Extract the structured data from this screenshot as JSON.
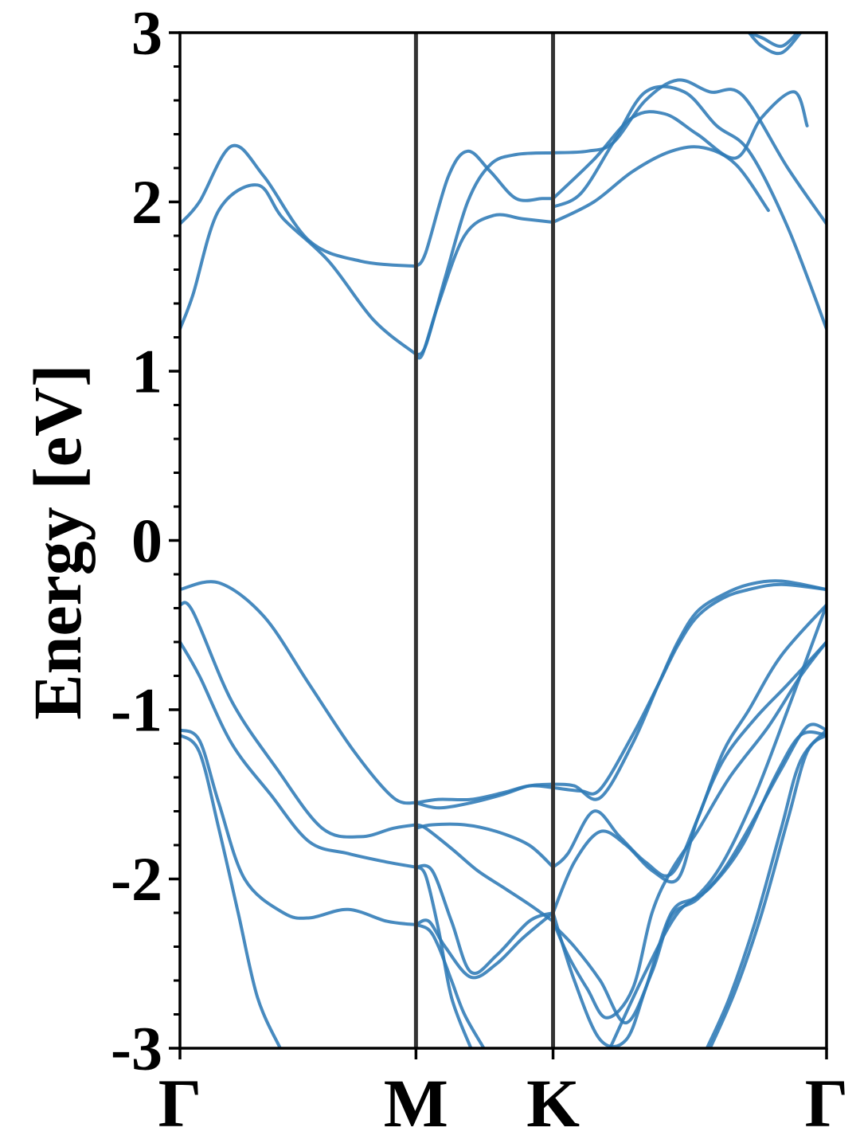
{
  "chart_data": {
    "type": "line",
    "title": "",
    "xlabel": "",
    "ylabel": "Energy [eV]",
    "ylim": [
      -3,
      3
    ],
    "xlim": [
      0,
      1
    ],
    "grid": false,
    "legend": "none",
    "yticks": [
      3,
      2,
      1,
      0,
      -1,
      -2,
      -3
    ],
    "ytick_labels": [
      "3",
      "2",
      "1",
      "0",
      "-1",
      "-2",
      "-3"
    ],
    "xticks": [
      0,
      0.365,
      0.577,
      1
    ],
    "xtick_labels": [
      "Γ",
      "M",
      "K",
      "Γ"
    ],
    "high_symmetry_lines": [
      0.365,
      0.577
    ],
    "series_color": "#2E7AB6",
    "vline_color": "#333333",
    "series": [
      {
        "x": [
          0,
          0.03,
          0.08,
          0.13,
          0.2,
          0.28,
          0.365
        ],
        "values": [
          1.87,
          2.0,
          2.33,
          2.15,
          1.77,
          1.65,
          1.62
        ]
      },
      {
        "x": [
          0,
          0.02,
          0.06,
          0.12,
          0.16,
          0.23,
          0.3,
          0.365
        ],
        "values": [
          1.25,
          1.45,
          1.95,
          2.1,
          1.9,
          1.65,
          1.3,
          1.1
        ]
      },
      {
        "x": [
          0.365,
          0.38,
          0.415,
          0.445,
          0.48,
          0.52,
          0.56,
          0.577
        ],
        "values": [
          1.62,
          1.7,
          2.15,
          2.3,
          2.18,
          2.02,
          2.02,
          2.02
        ]
      },
      {
        "x": [
          0.365,
          0.38,
          0.41,
          0.445,
          0.48,
          0.52,
          0.577
        ],
        "values": [
          1.1,
          1.15,
          1.55,
          2.0,
          2.22,
          2.28,
          2.29
        ]
      },
      {
        "x": [
          0.365,
          0.375,
          0.4,
          0.44,
          0.485,
          0.53,
          0.577
        ],
        "values": [
          1.1,
          1.1,
          1.4,
          1.8,
          1.92,
          1.9,
          1.88
        ]
      },
      {
        "x": [
          0.577,
          0.63,
          0.67,
          0.72,
          0.77,
          0.82,
          0.87,
          0.94,
          1.0
        ],
        "values": [
          2.29,
          2.3,
          2.35,
          2.6,
          2.72,
          2.65,
          2.63,
          2.2,
          1.87
        ]
      },
      {
        "x": [
          0.577,
          0.62,
          0.67,
          0.72,
          0.78,
          0.83,
          0.88,
          0.94,
          1.0
        ],
        "values": [
          1.97,
          2.05,
          2.35,
          2.65,
          2.65,
          2.45,
          2.3,
          1.85,
          1.25
        ]
      },
      {
        "x": [
          0.577,
          0.64,
          0.7,
          0.75,
          0.8,
          0.86,
          0.9,
          0.95,
          0.97
        ],
        "values": [
          2.02,
          2.25,
          2.5,
          2.52,
          2.4,
          2.26,
          2.5,
          2.65,
          2.45
        ]
      },
      {
        "x": [
          0.577,
          0.64,
          0.7,
          0.76,
          0.81,
          0.86,
          0.91
        ],
        "values": [
          1.88,
          2.0,
          2.18,
          2.3,
          2.32,
          2.22,
          1.95
        ]
      },
      {
        "x": [
          0.88,
          0.9,
          0.93,
          0.96
        ],
        "values": [
          3.0,
          2.92,
          2.88,
          3.0
        ]
      },
      {
        "x": [
          0.88,
          0.9,
          0.93,
          0.955
        ],
        "values": [
          3.0,
          2.97,
          2.92,
          3.0
        ]
      },
      {
        "x": [
          0,
          0.06,
          0.13,
          0.2,
          0.27,
          0.33,
          0.365
        ],
        "values": [
          -0.29,
          -0.25,
          -0.45,
          -0.85,
          -1.25,
          -1.52,
          -1.55
        ]
      },
      {
        "x": [
          0,
          0.02,
          0.08,
          0.15,
          0.22,
          0.28,
          0.33,
          0.365
        ],
        "values": [
          -0.38,
          -0.42,
          -0.95,
          -1.35,
          -1.7,
          -1.75,
          -1.7,
          -1.68
        ]
      },
      {
        "x": [
          0,
          0.03,
          0.08,
          0.14,
          0.2,
          0.26,
          0.32,
          0.365
        ],
        "values": [
          -0.6,
          -0.8,
          -1.2,
          -1.5,
          -1.78,
          -1.85,
          -1.9,
          -1.93
        ]
      },
      {
        "x": [
          0,
          0.03,
          0.06,
          0.1,
          0.16,
          0.2,
          0.26,
          0.32,
          0.365
        ],
        "values": [
          -1.12,
          -1.18,
          -1.55,
          -2.0,
          -2.2,
          -2.23,
          -2.18,
          -2.25,
          -2.27
        ]
      },
      {
        "x": [
          0,
          0.03,
          0.06,
          0.09,
          0.12,
          0.155
        ],
        "values": [
          -1.15,
          -1.25,
          -1.7,
          -2.2,
          -2.7,
          -3.0
        ]
      },
      {
        "x": [
          0.365,
          0.4,
          0.45,
          0.5,
          0.54,
          0.577
        ],
        "values": [
          -1.55,
          -1.58,
          -1.55,
          -1.5,
          -1.45,
          -1.44
        ]
      },
      {
        "x": [
          0.365,
          0.4,
          0.45,
          0.5,
          0.54,
          0.577
        ],
        "values": [
          -1.55,
          -1.53,
          -1.53,
          -1.49,
          -1.45,
          -1.46
        ]
      },
      {
        "x": [
          0.365,
          0.39,
          0.44,
          0.49,
          0.54,
          0.577
        ],
        "values": [
          -1.7,
          -1.68,
          -1.68,
          -1.72,
          -1.8,
          -1.93
        ]
      },
      {
        "x": [
          0.365,
          0.38,
          0.42,
          0.46,
          0.5,
          0.54,
          0.577
        ],
        "values": [
          -1.68,
          -1.7,
          -1.82,
          -1.95,
          -2.05,
          -2.15,
          -2.25
        ]
      },
      {
        "x": [
          0.365,
          0.39,
          0.42,
          0.45,
          0.49,
          0.54,
          0.577
        ],
        "values": [
          -1.93,
          -1.95,
          -2.25,
          -2.55,
          -2.45,
          -2.25,
          -2.2
        ]
      },
      {
        "x": [
          0.365,
          0.385,
          0.41,
          0.45,
          0.49,
          0.53,
          0.577
        ],
        "values": [
          -2.27,
          -2.25,
          -2.4,
          -2.58,
          -2.5,
          -2.35,
          -2.2
        ]
      },
      {
        "x": [
          0.365,
          0.385,
          0.4,
          0.42,
          0.44,
          0.47
        ],
        "values": [
          -2.27,
          -2.3,
          -2.4,
          -2.6,
          -2.8,
          -3.0
        ]
      },
      {
        "x": [
          0.365,
          0.38,
          0.4,
          0.42,
          0.45
        ],
        "values": [
          -1.93,
          -1.98,
          -2.3,
          -2.7,
          -3.0
        ]
      },
      {
        "x": [
          0.577,
          0.61,
          0.65,
          0.7,
          0.74,
          0.77,
          0.8,
          0.84,
          0.88,
          0.93,
          1.0
        ],
        "values": [
          -1.44,
          -1.45,
          -1.52,
          -1.2,
          -0.85,
          -0.6,
          -0.42,
          -0.32,
          -0.26,
          -0.24,
          -0.29
        ]
      },
      {
        "x": [
          0.577,
          0.62,
          0.65,
          0.7,
          0.74,
          0.77,
          0.8,
          0.84,
          0.88,
          0.93,
          1.0
        ],
        "values": [
          -1.46,
          -1.48,
          -1.47,
          -1.15,
          -0.85,
          -0.62,
          -0.45,
          -0.34,
          -0.29,
          -0.26,
          -0.29
        ]
      },
      {
        "x": [
          0.577,
          0.6,
          0.64,
          0.68,
          0.72,
          0.76,
          0.8,
          0.84,
          0.88,
          0.93,
          1.0
        ],
        "values": [
          -1.93,
          -1.85,
          -1.6,
          -1.75,
          -1.9,
          -1.97,
          -1.65,
          -1.25,
          -1.0,
          -0.68,
          -0.38
        ]
      },
      {
        "x": [
          0.577,
          0.61,
          0.65,
          0.69,
          0.73,
          0.77,
          0.8,
          0.84,
          0.89,
          0.94,
          1.0
        ],
        "values": [
          -2.2,
          -1.9,
          -1.72,
          -1.8,
          -1.95,
          -2.0,
          -1.65,
          -1.3,
          -1.05,
          -0.85,
          -0.6
        ]
      },
      {
        "x": [
          0.577,
          0.6,
          0.63,
          0.66,
          0.7,
          0.73,
          0.76,
          0.8,
          0.85,
          0.91,
          0.96,
          1.0
        ],
        "values": [
          -2.25,
          -2.45,
          -2.65,
          -2.82,
          -2.65,
          -2.2,
          -1.95,
          -1.72,
          -1.4,
          -1.1,
          -0.8,
          -0.6
        ]
      },
      {
        "x": [
          0.577,
          0.61,
          0.65,
          0.69,
          0.72,
          0.76,
          0.8,
          0.84,
          0.89,
          0.94,
          1.0
        ],
        "values": [
          -2.2,
          -2.6,
          -2.95,
          -2.95,
          -2.65,
          -2.2,
          -2.1,
          -1.9,
          -1.5,
          -1.0,
          -0.38
        ]
      },
      {
        "x": [
          0.577,
          0.61,
          0.65,
          0.69,
          0.73,
          0.76,
          0.8,
          0.84,
          0.88,
          0.93,
          0.97,
          1.0
        ],
        "values": [
          -2.27,
          -2.4,
          -2.6,
          -2.85,
          -2.55,
          -2.22,
          -2.12,
          -1.95,
          -1.7,
          -1.35,
          -1.1,
          -1.12
        ]
      },
      {
        "x": [
          0.665,
          0.72,
          0.77,
          0.82,
          0.87,
          0.92,
          0.96,
          1.0
        ],
        "values": [
          -3.0,
          -2.55,
          -2.2,
          -2.05,
          -1.8,
          -1.4,
          -1.15,
          -1.15
        ]
      },
      {
        "x": [
          0.815,
          0.85,
          0.89,
          0.93,
          0.96,
          1.0
        ],
        "values": [
          -3.0,
          -2.7,
          -2.25,
          -1.7,
          -1.3,
          -1.12
        ]
      },
      {
        "x": [
          0.82,
          0.86,
          0.9,
          0.94,
          0.97,
          1.0
        ],
        "values": [
          -3.0,
          -2.65,
          -2.2,
          -1.65,
          -1.25,
          -1.15
        ]
      }
    ]
  }
}
